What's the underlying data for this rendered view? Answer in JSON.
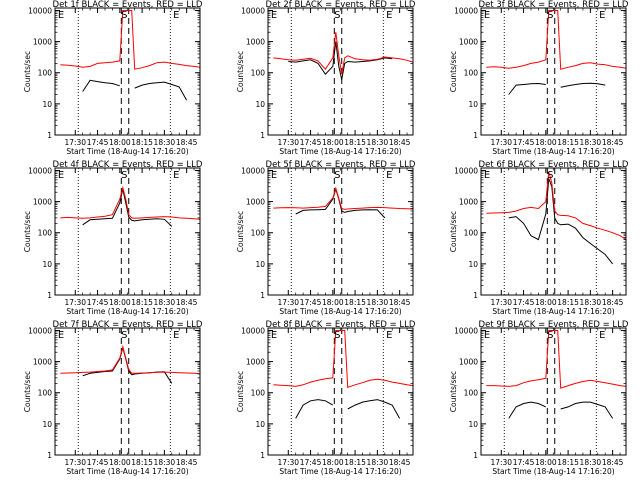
{
  "colors": {
    "events": "#000000",
    "lld": "#ff0000",
    "frame": "#000000",
    "background": "#ffffff"
  },
  "chart_data": [
    {
      "type": "line",
      "title": "Det 1f BLACK = Events, RED = LLD",
      "xlabel": "Start Time (18-Aug-14 17:16:20)",
      "ylabel": "Counts/sec",
      "x_tick_labels": [
        "17:30",
        "17:45",
        "18:00",
        "18:15",
        "18:30",
        "18:45"
      ],
      "y_tick_labels": [
        "1",
        "10",
        "100",
        "1000",
        "10000"
      ],
      "yscale": "log",
      "ylim": [
        1,
        12000
      ],
      "xlim": [
        "17:16:20",
        "18:54:00"
      ],
      "markers": [
        "E",
        "S",
        "E"
      ],
      "dotted_lines": [
        "17:32",
        "18:34"
      ],
      "dashed_lines": [
        "18:01",
        "18:06"
      ],
      "x": [
        "17:20",
        "17:25",
        "17:30",
        "17:35",
        "17:40",
        "17:45",
        "17:50",
        "17:55",
        "18:00",
        "18:02",
        "18:04",
        "18:06",
        "18:08",
        "18:10",
        "18:15",
        "18:20",
        "18:25",
        "18:30",
        "18:35",
        "18:40",
        "18:45",
        "18:50",
        "18:54"
      ],
      "series": [
        {
          "name": "Events",
          "color": "#000000",
          "values": [
            null,
            null,
            null,
            25,
            57,
            52,
            48,
            45,
            38,
            null,
            null,
            null,
            null,
            32,
            40,
            45,
            48,
            50,
            42,
            35,
            13,
            null,
            null
          ]
        },
        {
          "name": "LLD",
          "color": "#ff0000",
          "values": [
            180,
            175,
            165,
            150,
            160,
            200,
            210,
            220,
            240,
            10000,
            10000,
            10000,
            10000,
            130,
            145,
            170,
            210,
            220,
            200,
            185,
            170,
            160,
            150
          ]
        }
      ]
    },
    {
      "type": "line",
      "title": "Det 2f BLACK = Events, RED = LLD",
      "xlabel": "Start Time (18-Aug-14 17:16:20)",
      "ylabel": "Counts/sec",
      "x_tick_labels": [
        "17:30",
        "17:45",
        "18:00",
        "18:15",
        "18:30",
        "18:45"
      ],
      "y_tick_labels": [
        "1",
        "10",
        "100",
        "1000",
        "10000"
      ],
      "yscale": "log",
      "ylim": [
        1,
        12000
      ],
      "xlim": [
        "17:16:20",
        "18:54:00"
      ],
      "markers": [
        "E",
        "S",
        "E"
      ],
      "dotted_lines": [
        "17:32",
        "18:34"
      ],
      "dashed_lines": [
        "18:01",
        "18:06"
      ],
      "x": [
        "17:20",
        "17:25",
        "17:30",
        "17:35",
        "17:40",
        "17:45",
        "17:50",
        "17:55",
        "18:00",
        "18:02",
        "18:04",
        "18:06",
        "18:08",
        "18:10",
        "18:15",
        "18:20",
        "18:25",
        "18:30",
        "18:35",
        "18:40",
        "18:45",
        "18:50",
        "18:54"
      ],
      "series": [
        {
          "name": "Events",
          "color": "#000000",
          "values": [
            null,
            null,
            230,
            220,
            240,
            260,
            200,
            90,
            160,
            1000,
            160,
            60,
            200,
            230,
            220,
            230,
            240,
            260,
            300,
            280,
            null,
            null,
            null
          ]
        },
        {
          "name": "LLD",
          "color": "#ff0000",
          "values": [
            300,
            280,
            260,
            250,
            270,
            290,
            240,
            130,
            300,
            2000,
            350,
            90,
            300,
            350,
            280,
            260,
            250,
            270,
            320,
            300,
            280,
            250,
            220
          ]
        }
      ]
    },
    {
      "type": "line",
      "title": "Det 3f BLACK = Events, RED = LLD",
      "xlabel": "Start Time (18-Aug-14 17:16:20)",
      "ylabel": "Counts/sec",
      "x_tick_labels": [
        "17:30",
        "17:45",
        "18:00",
        "18:15",
        "18:30",
        "18:45"
      ],
      "y_tick_labels": [
        "1",
        "10",
        "100",
        "1000",
        "10000"
      ],
      "yscale": "log",
      "ylim": [
        1,
        12000
      ],
      "xlim": [
        "17:16:20",
        "18:54:00"
      ],
      "markers": [
        "E",
        "S",
        "E"
      ],
      "dotted_lines": [
        "17:32",
        "18:34"
      ],
      "dashed_lines": [
        "18:01",
        "18:06"
      ],
      "x": [
        "17:20",
        "17:25",
        "17:30",
        "17:35",
        "17:40",
        "17:45",
        "17:50",
        "17:55",
        "18:00",
        "18:02",
        "18:04",
        "18:06",
        "18:08",
        "18:10",
        "18:15",
        "18:20",
        "18:25",
        "18:30",
        "18:35",
        "18:40",
        "18:45",
        "18:50",
        "18:54"
      ],
      "series": [
        {
          "name": "Events",
          "color": "#000000",
          "values": [
            null,
            null,
            null,
            20,
            40,
            42,
            44,
            45,
            42,
            null,
            null,
            null,
            null,
            34,
            38,
            42,
            45,
            46,
            44,
            40,
            null,
            null,
            null
          ]
        },
        {
          "name": "LLD",
          "color": "#ff0000",
          "values": [
            150,
            155,
            150,
            140,
            150,
            170,
            200,
            220,
            260,
            10000,
            10000,
            10000,
            10000,
            130,
            150,
            170,
            200,
            210,
            190,
            180,
            160,
            150,
            140
          ]
        }
      ]
    },
    {
      "type": "line",
      "title": "Det 4f BLACK = Events, RED = LLD",
      "xlabel": "Start Time (18-Aug-14 17:16:20)",
      "ylabel": "Counts/sec",
      "x_tick_labels": [
        "17:30",
        "17:45",
        "18:00",
        "18:15",
        "18:30",
        "18:45"
      ],
      "y_tick_labels": [
        "1",
        "10",
        "100",
        "1000",
        "10000"
      ],
      "yscale": "log",
      "ylim": [
        1,
        12000
      ],
      "xlim": [
        "17:16:20",
        "18:54:00"
      ],
      "markers": [
        "E",
        "S",
        "E"
      ],
      "dotted_lines": [
        "17:32",
        "18:34"
      ],
      "dashed_lines": [
        "18:01",
        "18:06"
      ],
      "x": [
        "17:20",
        "17:25",
        "17:30",
        "17:35",
        "17:40",
        "17:45",
        "17:50",
        "17:55",
        "18:00",
        "18:02",
        "18:04",
        "18:06",
        "18:08",
        "18:10",
        "18:15",
        "18:20",
        "18:25",
        "18:30",
        "18:35",
        "18:40",
        "18:45",
        "18:50",
        "18:54"
      ],
      "series": [
        {
          "name": "Events",
          "color": "#000000",
          "values": [
            null,
            null,
            null,
            180,
            260,
            270,
            280,
            290,
            900,
            2500,
            900,
            320,
            250,
            240,
            260,
            270,
            280,
            270,
            160,
            null,
            null,
            null,
            null
          ]
        },
        {
          "name": "LLD",
          "color": "#ff0000",
          "values": [
            300,
            310,
            300,
            290,
            300,
            320,
            340,
            380,
            1200,
            2800,
            1200,
            380,
            300,
            290,
            300,
            310,
            320,
            330,
            320,
            300,
            290,
            280,
            270
          ]
        }
      ]
    },
    {
      "type": "line",
      "title": "Det 5f BLACK = Events, RED = LLD",
      "xlabel": "Start Time (18-Aug-14 17:16:20)",
      "ylabel": "Counts/sec",
      "x_tick_labels": [
        "17:30",
        "17:45",
        "18:00",
        "18:15",
        "18:30",
        "18:45"
      ],
      "y_tick_labels": [
        "1",
        "10",
        "100",
        "1000",
        "10000"
      ],
      "yscale": "log",
      "ylim": [
        1,
        12000
      ],
      "xlim": [
        "17:16:20",
        "18:54:00"
      ],
      "markers": [
        "E",
        "S",
        "E"
      ],
      "dotted_lines": [
        "17:32",
        "18:34"
      ],
      "dashed_lines": [
        "18:01",
        "18:06"
      ],
      "x": [
        "17:20",
        "17:25",
        "17:30",
        "17:35",
        "17:40",
        "17:45",
        "17:50",
        "17:55",
        "18:00",
        "18:02",
        "18:04",
        "18:06",
        "18:08",
        "18:10",
        "18:15",
        "18:20",
        "18:25",
        "18:30",
        "18:35",
        "18:40",
        "18:45",
        "18:50",
        "18:54"
      ],
      "series": [
        {
          "name": "Events",
          "color": "#000000",
          "values": [
            null,
            null,
            null,
            400,
            520,
            540,
            550,
            560,
            1200,
            2500,
            1200,
            500,
            450,
            480,
            520,
            540,
            550,
            540,
            300,
            null,
            null,
            null,
            null
          ]
        },
        {
          "name": "LLD",
          "color": "#ff0000",
          "values": [
            620,
            630,
            640,
            630,
            620,
            640,
            660,
            700,
            1300,
            2700,
            1300,
            600,
            560,
            580,
            600,
            620,
            640,
            650,
            640,
            620,
            600,
            590,
            580
          ]
        }
      ]
    },
    {
      "type": "line",
      "title": "Det 6f BLACK = Events, RED = LLD",
      "xlabel": "Start Time (18-Aug-14 17:16:20)",
      "ylabel": "Counts/sec",
      "x_tick_labels": [
        "17:30",
        "17:45",
        "18:00",
        "18:15",
        "18:30",
        "18:45"
      ],
      "y_tick_labels": [
        "1",
        "10",
        "100",
        "1000",
        "10000"
      ],
      "yscale": "log",
      "ylim": [
        1,
        12000
      ],
      "xlim": [
        "17:16:20",
        "18:54:00"
      ],
      "markers": [
        "E",
        "S",
        "E"
      ],
      "dotted_lines": [
        "17:32",
        "18:34"
      ],
      "dashed_lines": [
        "18:01",
        "18:06"
      ],
      "x": [
        "17:20",
        "17:25",
        "17:30",
        "17:35",
        "17:40",
        "17:45",
        "17:50",
        "17:55",
        "18:00",
        "18:02",
        "18:04",
        "18:06",
        "18:08",
        "18:10",
        "18:15",
        "18:20",
        "18:25",
        "18:30",
        "18:35",
        "18:40",
        "18:45",
        "18:50",
        "18:54"
      ],
      "series": [
        {
          "name": "Events",
          "color": "#000000",
          "values": [
            null,
            null,
            null,
            300,
            330,
            200,
            80,
            60,
            400,
            5500,
            3000,
            300,
            200,
            180,
            190,
            140,
            70,
            45,
            30,
            20,
            10,
            null,
            null
          ]
        },
        {
          "name": "LLD",
          "color": "#ff0000",
          "values": [
            420,
            430,
            440,
            450,
            500,
            600,
            650,
            600,
            1000,
            9000,
            4000,
            500,
            380,
            360,
            350,
            300,
            200,
            170,
            140,
            120,
            100,
            80,
            60
          ]
        }
      ]
    },
    {
      "type": "line",
      "title": "Det 7f BLACK = Events, RED = LLD",
      "xlabel": "Start Time (18-Aug-14 17:16:20)",
      "ylabel": "Counts/sec",
      "x_tick_labels": [
        "17:30",
        "17:45",
        "18:00",
        "18:15",
        "18:30",
        "18:45"
      ],
      "y_tick_labels": [
        "1",
        "10",
        "100",
        "1000",
        "10000"
      ],
      "yscale": "log",
      "ylim": [
        1,
        12000
      ],
      "xlim": [
        "17:16:20",
        "18:54:00"
      ],
      "markers": [
        "E",
        "S",
        "E"
      ],
      "dotted_lines": [
        "17:32",
        "18:34"
      ],
      "dashed_lines": [
        "18:01",
        "18:06"
      ],
      "x": [
        "17:20",
        "17:25",
        "17:30",
        "17:35",
        "17:40",
        "17:45",
        "17:50",
        "17:55",
        "18:00",
        "18:02",
        "18:04",
        "18:06",
        "18:08",
        "18:10",
        "18:15",
        "18:20",
        "18:25",
        "18:30",
        "18:35",
        "18:40",
        "18:45",
        "18:50",
        "18:54"
      ],
      "series": [
        {
          "name": "Events",
          "color": "#000000",
          "values": [
            null,
            null,
            null,
            350,
            420,
            450,
            480,
            500,
            1200,
            2800,
            1200,
            500,
            380,
            400,
            420,
            440,
            460,
            470,
            200,
            null,
            null,
            null,
            null
          ]
        },
        {
          "name": "LLD",
          "color": "#ff0000",
          "values": [
            420,
            430,
            440,
            450,
            460,
            480,
            500,
            540,
            1300,
            3000,
            1300,
            560,
            420,
            420,
            430,
            440,
            450,
            460,
            450,
            440,
            430,
            420,
            410
          ]
        }
      ]
    },
    {
      "type": "line",
      "title": "Det 8f BLACK = Events, RED = LLD",
      "xlabel": "Start Time (18-Aug-14 17:16:20)",
      "ylabel": "Counts/sec",
      "x_tick_labels": [
        "17:30",
        "17:45",
        "18:00",
        "18:15",
        "18:30",
        "18:45"
      ],
      "y_tick_labels": [
        "1",
        "10",
        "100",
        "1000",
        "10000"
      ],
      "yscale": "log",
      "ylim": [
        1,
        12000
      ],
      "xlim": [
        "17:16:20",
        "18:54:00"
      ],
      "markers": [
        "E",
        "S",
        "E"
      ],
      "dotted_lines": [
        "17:32",
        "18:34"
      ],
      "dashed_lines": [
        "18:01",
        "18:06"
      ],
      "x": [
        "17:20",
        "17:25",
        "17:30",
        "17:35",
        "17:40",
        "17:45",
        "17:50",
        "17:55",
        "18:00",
        "18:02",
        "18:04",
        "18:06",
        "18:08",
        "18:10",
        "18:15",
        "18:20",
        "18:25",
        "18:30",
        "18:35",
        "18:40",
        "18:45",
        "18:50",
        "18:54"
      ],
      "series": [
        {
          "name": "Events",
          "color": "#000000",
          "values": [
            null,
            null,
            null,
            15,
            40,
            55,
            60,
            55,
            40,
            null,
            null,
            null,
            null,
            30,
            40,
            50,
            55,
            60,
            50,
            40,
            15,
            null,
            null
          ]
        },
        {
          "name": "LLD",
          "color": "#ff0000",
          "values": [
            180,
            175,
            170,
            160,
            180,
            220,
            250,
            280,
            300,
            10000,
            10000,
            10000,
            10000,
            150,
            180,
            210,
            250,
            270,
            250,
            220,
            200,
            180,
            170
          ]
        }
      ]
    },
    {
      "type": "line",
      "title": "Det 9f BLACK = Events, RED = LLD",
      "xlabel": "Start Time (18-Aug-14 17:16:20)",
      "ylabel": "Counts/sec",
      "x_tick_labels": [
        "17:30",
        "17:45",
        "18:00",
        "18:15",
        "18:30",
        "18:45"
      ],
      "y_tick_labels": [
        "1",
        "10",
        "100",
        "1000",
        "10000"
      ],
      "yscale": "log",
      "ylim": [
        1,
        12000
      ],
      "xlim": [
        "17:16:20",
        "18:54:00"
      ],
      "markers": [
        "E",
        "S",
        "E"
      ],
      "dotted_lines": [
        "17:32",
        "18:34"
      ],
      "dashed_lines": [
        "18:01",
        "18:06"
      ],
      "x": [
        "17:20",
        "17:25",
        "17:30",
        "17:35",
        "17:40",
        "17:45",
        "17:50",
        "17:55",
        "18:00",
        "18:02",
        "18:04",
        "18:06",
        "18:08",
        "18:10",
        "18:15",
        "18:20",
        "18:25",
        "18:30",
        "18:35",
        "18:40",
        "18:45",
        "18:50",
        "18:54"
      ],
      "series": [
        {
          "name": "Events",
          "color": "#000000",
          "values": [
            null,
            null,
            null,
            15,
            35,
            45,
            50,
            45,
            35,
            null,
            null,
            null,
            null,
            30,
            35,
            45,
            50,
            50,
            42,
            35,
            15,
            null,
            null
          ]
        },
        {
          "name": "LLD",
          "color": "#ff0000",
          "values": [
            170,
            170,
            165,
            160,
            170,
            210,
            240,
            260,
            290,
            10000,
            10000,
            10000,
            10000,
            140,
            170,
            200,
            230,
            250,
            230,
            210,
            190,
            170,
            160
          ]
        }
      ]
    }
  ]
}
